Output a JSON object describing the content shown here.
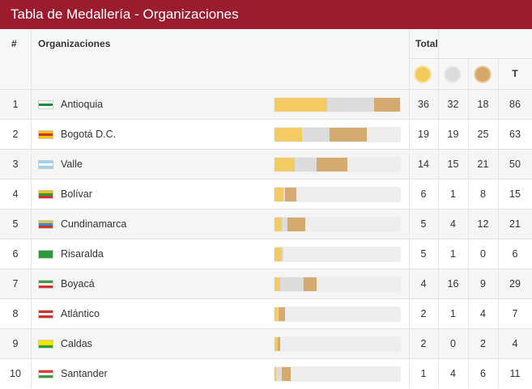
{
  "header": {
    "title": "Tabla de Medallería - Organizaciones"
  },
  "table": {
    "columns": {
      "rank": "#",
      "organization": "Organizaciones",
      "medals": "Total",
      "total": "T"
    },
    "rows": [
      {
        "rank": 1,
        "name": "Antioquia",
        "gold": 36,
        "silver": 32,
        "bronze": 18,
        "total": 86
      },
      {
        "rank": 2,
        "name": "Bogotá D.C.",
        "gold": 19,
        "silver": 19,
        "bronze": 25,
        "total": 63
      },
      {
        "rank": 3,
        "name": "Valle",
        "gold": 14,
        "silver": 15,
        "bronze": 21,
        "total": 50
      },
      {
        "rank": 4,
        "name": "Bolívar",
        "gold": 6,
        "silver": 1,
        "bronze": 8,
        "total": 15
      },
      {
        "rank": 5,
        "name": "Cundinamarca",
        "gold": 5,
        "silver": 4,
        "bronze": 12,
        "total": 21
      },
      {
        "rank": 6,
        "name": "Risaralda",
        "gold": 5,
        "silver": 1,
        "bronze": 0,
        "total": 6
      },
      {
        "rank": 7,
        "name": "Boyacá",
        "gold": 4,
        "silver": 16,
        "bronze": 9,
        "total": 29
      },
      {
        "rank": 8,
        "name": "Atlántico",
        "gold": 2,
        "silver": 1,
        "bronze": 4,
        "total": 7
      },
      {
        "rank": 9,
        "name": "Caldas",
        "gold": 2,
        "silver": 0,
        "bronze": 2,
        "total": 4
      },
      {
        "rank": 10,
        "name": "Santander",
        "gold": 1,
        "silver": 4,
        "bronze": 6,
        "total": 11
      }
    ]
  }
}
